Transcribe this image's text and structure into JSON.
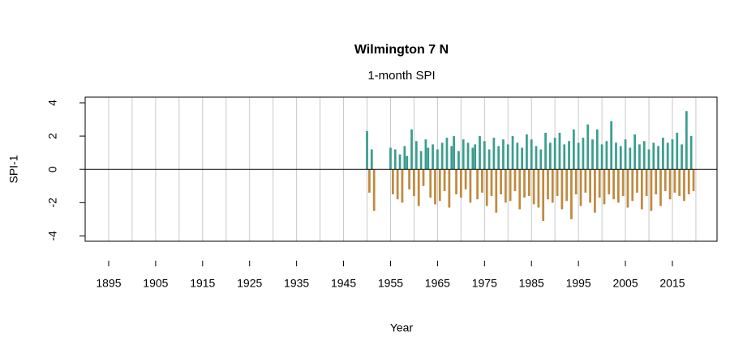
{
  "chart_data": {
    "type": "bar",
    "title": "Wilmington 7 N",
    "subtitle": "1-month SPI",
    "x_label": "Year",
    "y_label": "SPI-1",
    "positive_color": "#3a9e8f",
    "negative_color": "#c08a3e",
    "xlim": [
      1890,
      2024.5
    ],
    "xticks": [
      1895,
      1905,
      1915,
      1925,
      1935,
      1945,
      1955,
      1965,
      1975,
      1985,
      1995,
      2005,
      2015
    ],
    "xgrid": [
      1895,
      1900,
      1905,
      1910,
      1915,
      1920,
      1925,
      1930,
      1935,
      1940,
      1945,
      1950,
      1955,
      1960,
      1965,
      1970,
      1975,
      1980,
      1985,
      1990,
      1995,
      2000,
      2005,
      2010,
      2015,
      2020
    ],
    "ylim": [
      -4.32,
      4.34
    ],
    "yticks": [
      -4,
      -2,
      0,
      2,
      4
    ],
    "zero_line": true,
    "x": [
      1950,
      1950.5,
      1951,
      1951.5,
      1955,
      1955.5,
      1956,
      1956.5,
      1957,
      1957.5,
      1958,
      1958.5,
      1959,
      1959.5,
      1960,
      1960.5,
      1961,
      1961.5,
      1962,
      1962.5,
      1963,
      1963.5,
      1964,
      1964.5,
      1965,
      1965.5,
      1966,
      1966.5,
      1967,
      1967.5,
      1968,
      1968.5,
      1969,
      1969.5,
      1970,
      1970.5,
      1971,
      1971.5,
      1972,
      1972.5,
      1973,
      1973.5,
      1974,
      1974.5,
      1975,
      1975.5,
      1976,
      1976.5,
      1977,
      1977.5,
      1978,
      1978.5,
      1979,
      1979.5,
      1980,
      1980.5,
      1981,
      1981.5,
      1982,
      1982.5,
      1983,
      1983.5,
      1984,
      1984.5,
      1985,
      1985.5,
      1986,
      1986.5,
      1987,
      1987.5,
      1988,
      1988.5,
      1989,
      1989.5,
      1990,
      1990.5,
      1991,
      1991.5,
      1992,
      1992.5,
      1993,
      1993.5,
      1994,
      1994.5,
      1995,
      1995.5,
      1996,
      1996.5,
      1997,
      1997.5,
      1998,
      1998.5,
      1999,
      1999.5,
      2000,
      2000.5,
      2001,
      2001.5,
      2002,
      2002.5,
      2003,
      2003.5,
      2004,
      2004.5,
      2005,
      2005.5,
      2006,
      2006.5,
      2007,
      2007.5,
      2008,
      2008.5,
      2009,
      2009.5,
      2010,
      2010.5,
      2011,
      2011.5,
      2012,
      2012.5,
      2013,
      2013.5,
      2014,
      2014.5,
      2015,
      2015.5,
      2016,
      2016.5,
      2017,
      2017.5,
      2018,
      2018.5,
      2019,
      2019.5
    ],
    "values": [
      2.3,
      -1.4,
      1.2,
      -2.5,
      1.3,
      -1.5,
      1.2,
      -1.8,
      0.9,
      -2.0,
      1.4,
      0.8,
      -1.2,
      2.4,
      -1.6,
      1.7,
      -2.2,
      1.1,
      -1.0,
      1.8,
      1.3,
      -1.7,
      1.5,
      -2.1,
      1.2,
      -1.9,
      1.6,
      -1.3,
      1.9,
      -2.3,
      1.4,
      2.0,
      -1.5,
      1.1,
      -1.7,
      1.8,
      -1.2,
      1.6,
      -2.0,
      1.3,
      1.5,
      -1.8,
      2.0,
      -1.4,
      1.7,
      -2.2,
      1.2,
      -1.6,
      1.9,
      -2.6,
      1.4,
      -1.5,
      1.8,
      -2.0,
      1.5,
      -1.9,
      2.0,
      -1.3,
      1.6,
      -2.4,
      1.3,
      -1.7,
      2.1,
      -1.6,
      1.8,
      -2.1,
      1.4,
      -2.3,
      1.2,
      -3.1,
      2.2,
      -1.8,
      1.6,
      -2.0,
      1.9,
      -1.6,
      2.2,
      -2.4,
      1.5,
      -1.9,
      1.7,
      -3.0,
      2.4,
      -1.5,
      1.6,
      -2.2,
      1.9,
      -1.4,
      2.7,
      -2.0,
      1.8,
      -2.6,
      2.4,
      -1.7,
      1.5,
      -2.1,
      1.7,
      -1.5,
      2.9,
      -1.8,
      1.6,
      -2.0,
      1.4,
      -1.6,
      1.8,
      -2.3,
      1.3,
      -1.9,
      2.1,
      -1.4,
      1.5,
      -2.4,
      1.7,
      -1.6,
      1.2,
      -2.5,
      1.6,
      -1.5,
      1.4,
      -2.2,
      1.9,
      -1.3,
      1.6,
      -1.8,
      1.8,
      -1.4,
      2.2,
      -1.6,
      1.5,
      -1.9,
      3.5,
      -1.5,
      2.0,
      -1.3
    ]
  }
}
